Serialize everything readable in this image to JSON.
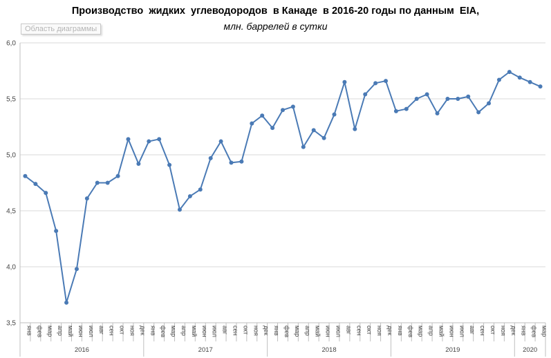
{
  "tooltip": "Область диаграммы",
  "chart_data": {
    "type": "line",
    "title": "Производство  жидких  углеводородов  в Канаде  в 2016-20 годы по данным  EIA,",
    "subtitle": "млн. баррелей в сутки",
    "ylim": [
      3.5,
      6.0
    ],
    "yticks": [
      "3,5",
      "4,0",
      "4,5",
      "5,0",
      "5,5",
      "6,0"
    ],
    "grid": true,
    "line_color": "#4a7ab5",
    "month_labels": [
      "янв",
      "фев",
      "мар",
      "апр",
      "май",
      "июн",
      "июл",
      "авг",
      "сен",
      "окт",
      "ноя",
      "дек"
    ],
    "years": [
      {
        "label": "2016",
        "months": 12
      },
      {
        "label": "2017",
        "months": 12
      },
      {
        "label": "2018",
        "months": 12
      },
      {
        "label": "2019",
        "months": 12
      },
      {
        "label": "2020",
        "months": 3
      }
    ],
    "values": [
      4.81,
      4.74,
      4.66,
      4.32,
      3.68,
      3.98,
      4.61,
      4.75,
      4.75,
      4.81,
      5.14,
      4.92,
      5.12,
      5.14,
      4.91,
      4.51,
      4.63,
      4.69,
      4.97,
      5.12,
      4.93,
      4.94,
      5.28,
      5.35,
      5.24,
      5.4,
      5.43,
      5.07,
      5.22,
      5.15,
      5.36,
      5.65,
      5.23,
      5.54,
      5.64,
      5.66,
      5.39,
      5.41,
      5.5,
      5.54,
      5.37,
      5.5,
      5.5,
      5.52,
      5.38,
      5.46,
      5.67,
      5.74,
      5.69,
      5.65,
      5.61
    ]
  }
}
